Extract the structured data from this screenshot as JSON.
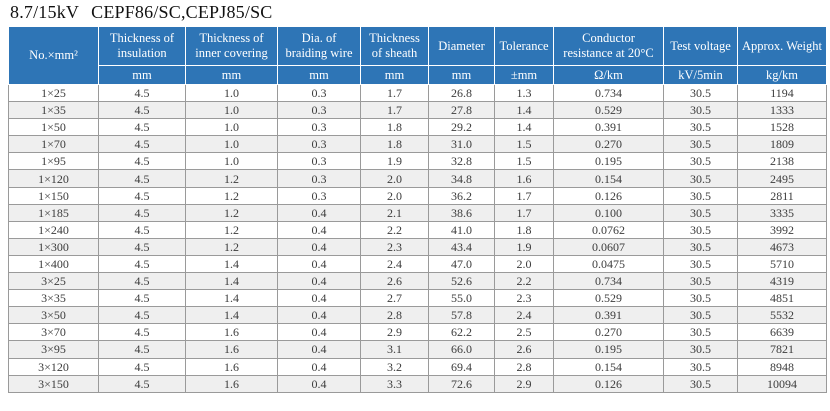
{
  "title": {
    "voltage": "8.7/15kV",
    "models": "CEPF86/SC,CEPJ85/SC"
  },
  "colors": {
    "header_bg": "#2e75b6",
    "header_text": "#ffffff",
    "row_stripe": "#efefef",
    "border": "#9a9a9a",
    "body_text": "#3c3c3c"
  },
  "table": {
    "columns": [
      {
        "label": "No.×mm²",
        "unit": ""
      },
      {
        "label": "Thickness of insulation",
        "unit": "mm"
      },
      {
        "label": "Thickness of inner covering",
        "unit": "mm"
      },
      {
        "label": "Dia. of braiding wire",
        "unit": "mm"
      },
      {
        "label": "Thickness of sheath",
        "unit": "mm"
      },
      {
        "label": "Diameter",
        "unit": "mm"
      },
      {
        "label": "Tolerance",
        "unit": "±mm"
      },
      {
        "label": "Conductor resistance at 20°C",
        "unit": "Ω/km"
      },
      {
        "label": "Test voltage",
        "unit": "kV/5min"
      },
      {
        "label": "Approx. Weight",
        "unit": "kg/km"
      }
    ],
    "rows": [
      [
        "1×25",
        "4.5",
        "1.0",
        "0.3",
        "1.7",
        "26.8",
        "1.3",
        "0.734",
        "30.5",
        "1194"
      ],
      [
        "1×35",
        "4.5",
        "1.0",
        "0.3",
        "1.7",
        "27.8",
        "1.4",
        "0.529",
        "30.5",
        "1333"
      ],
      [
        "1×50",
        "4.5",
        "1.0",
        "0.3",
        "1.8",
        "29.2",
        "1.4",
        "0.391",
        "30.5",
        "1528"
      ],
      [
        "1×70",
        "4.5",
        "1.0",
        "0.3",
        "1.8",
        "31.0",
        "1.5",
        "0.270",
        "30.5",
        "1809"
      ],
      [
        "1×95",
        "4.5",
        "1.0",
        "0.3",
        "1.9",
        "32.8",
        "1.5",
        "0.195",
        "30.5",
        "2138"
      ],
      [
        "1×120",
        "4.5",
        "1.2",
        "0.3",
        "2.0",
        "34.8",
        "1.6",
        "0.154",
        "30.5",
        "2495"
      ],
      [
        "1×150",
        "4.5",
        "1.2",
        "0.3",
        "2.0",
        "36.2",
        "1.7",
        "0.126",
        "30.5",
        "2811"
      ],
      [
        "1×185",
        "4.5",
        "1.2",
        "0.4",
        "2.1",
        "38.6",
        "1.7",
        "0.100",
        "30.5",
        "3335"
      ],
      [
        "1×240",
        "4.5",
        "1.2",
        "0.4",
        "2.2",
        "41.0",
        "1.8",
        "0.0762",
        "30.5",
        "3992"
      ],
      [
        "1×300",
        "4.5",
        "1.2",
        "0.4",
        "2.3",
        "43.4",
        "1.9",
        "0.0607",
        "30.5",
        "4673"
      ],
      [
        "1×400",
        "4.5",
        "1.4",
        "0.4",
        "2.4",
        "47.0",
        "2.0",
        "0.0475",
        "30.5",
        "5710"
      ],
      [
        "3×25",
        "4.5",
        "1.4",
        "0.4",
        "2.6",
        "52.6",
        "2.2",
        "0.734",
        "30.5",
        "4319"
      ],
      [
        "3×35",
        "4.5",
        "1.4",
        "0.4",
        "2.7",
        "55.0",
        "2.3",
        "0.529",
        "30.5",
        "4851"
      ],
      [
        "3×50",
        "4.5",
        "1.4",
        "0.4",
        "2.8",
        "57.8",
        "2.4",
        "0.391",
        "30.5",
        "5532"
      ],
      [
        "3×70",
        "4.5",
        "1.6",
        "0.4",
        "2.9",
        "62.2",
        "2.5",
        "0.270",
        "30.5",
        "6639"
      ],
      [
        "3×95",
        "4.5",
        "1.6",
        "0.4",
        "3.1",
        "66.0",
        "2.6",
        "0.195",
        "30.5",
        "7821"
      ],
      [
        "3×120",
        "4.5",
        "1.6",
        "0.4",
        "3.2",
        "69.4",
        "2.8",
        "0.154",
        "30.5",
        "8948"
      ],
      [
        "3×150",
        "4.5",
        "1.6",
        "0.4",
        "3.3",
        "72.6",
        "2.9",
        "0.126",
        "30.5",
        "10094"
      ]
    ]
  }
}
